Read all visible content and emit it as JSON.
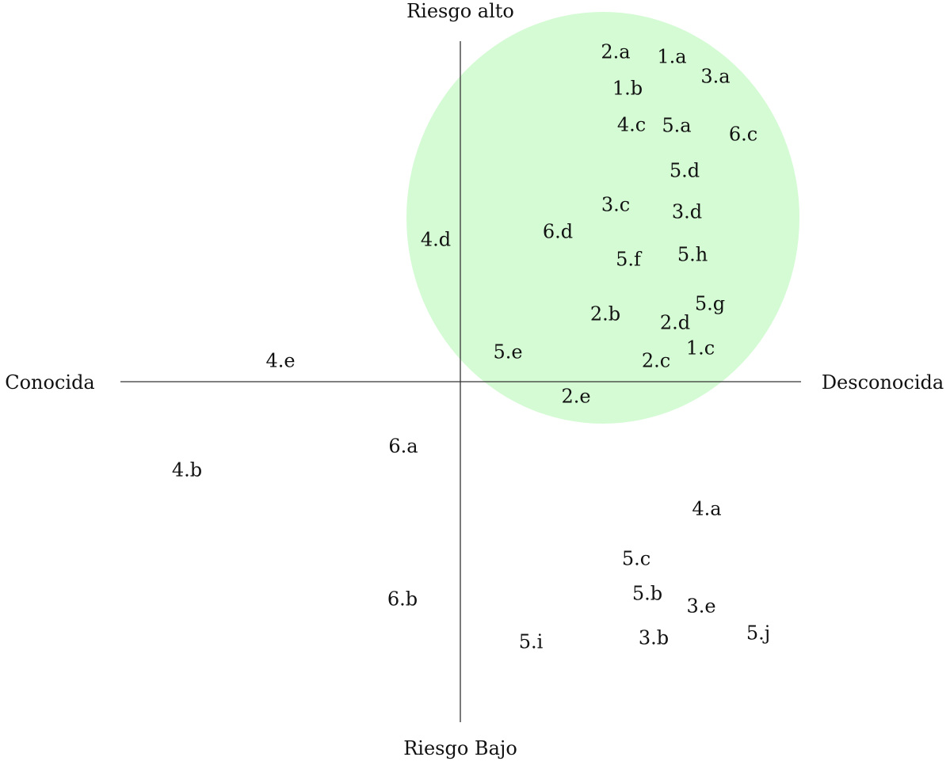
{
  "axes": {
    "top_label": "Riesgo alto",
    "bottom_label": "Riesgo Bajo",
    "left_label": "Conocida",
    "right_label": "Desconocida"
  },
  "highlight_color": "#d4fbd4",
  "axis_color": "#333333",
  "text_color": "#111111",
  "items": [
    {
      "label": "2.a"
    },
    {
      "label": "1.a"
    },
    {
      "label": "3.a"
    },
    {
      "label": "1.b"
    },
    {
      "label": "4.c"
    },
    {
      "label": "5.a"
    },
    {
      "label": "6.c"
    },
    {
      "label": "5.d"
    },
    {
      "label": "3.c"
    },
    {
      "label": "3.d"
    },
    {
      "label": "4.d"
    },
    {
      "label": "6.d"
    },
    {
      "label": "5.f"
    },
    {
      "label": "5.h"
    },
    {
      "label": "5.g"
    },
    {
      "label": "2.b"
    },
    {
      "label": "2.d"
    },
    {
      "label": "5.e"
    },
    {
      "label": "1.c"
    },
    {
      "label": "2.c"
    },
    {
      "label": "4.e"
    },
    {
      "label": "2.e"
    },
    {
      "label": "6.a"
    },
    {
      "label": "4.b"
    },
    {
      "label": "4.a"
    },
    {
      "label": "5.c"
    },
    {
      "label": "5.b"
    },
    {
      "label": "3.e"
    },
    {
      "label": "6.b"
    },
    {
      "label": "5.j"
    },
    {
      "label": "3.b"
    },
    {
      "label": "5.i"
    }
  ]
}
